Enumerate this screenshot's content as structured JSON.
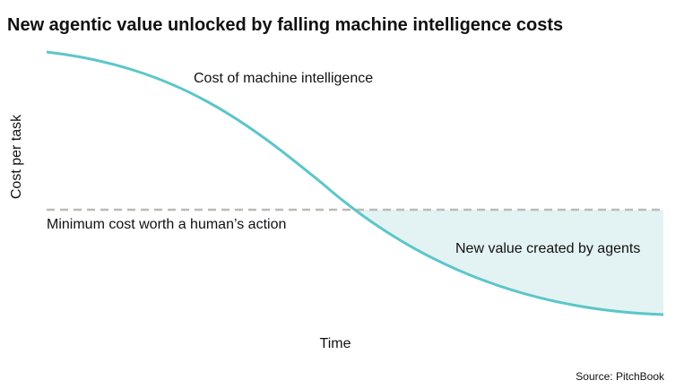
{
  "title": "New agentic value unlocked by falling machine intelligence costs",
  "y_axis_label": "Cost per task",
  "x_axis_label": "Time",
  "curve_label": "Cost of machine intelligence",
  "threshold_label": "Minimum cost worth a human’s action",
  "area_label": "New value created by agents",
  "source": "Source: PitchBook"
}
